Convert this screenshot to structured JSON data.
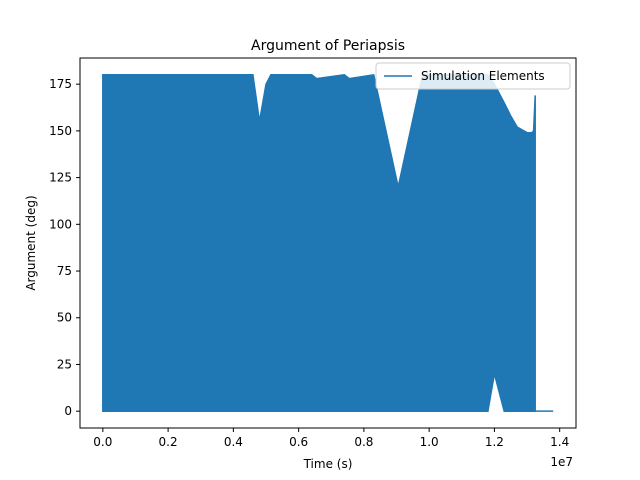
{
  "chart_data": {
    "type": "area",
    "title": "Argument of Periapsis",
    "xlabel": "Time (s)",
    "ylabel": "Argument (deg)",
    "x_offset_label": "1e7",
    "xlim": [
      -0.07,
      1.45
    ],
    "ylim": [
      -9,
      189
    ],
    "x_ticks": [
      0.0,
      0.2,
      0.4,
      0.6,
      0.8,
      1.0,
      1.2,
      1.4
    ],
    "x_tick_labels": [
      "0.0",
      "0.2",
      "0.4",
      "0.6",
      "0.8",
      "1.0",
      "1.2",
      "1.4"
    ],
    "y_ticks": [
      0,
      25,
      50,
      75,
      100,
      125,
      150,
      175
    ],
    "y_tick_labels": [
      "0",
      "25",
      "50",
      "75",
      "100",
      "125",
      "150",
      "175"
    ],
    "grid": false,
    "legend": {
      "position": "top-right",
      "entries": [
        "Simulation Elements"
      ]
    },
    "series": [
      {
        "name": "Simulation Elements",
        "color": "#1f77b4",
        "description": "Rapidly oscillating signal between the lower and upper envelopes",
        "x": [
          0.0,
          0.46,
          0.48,
          0.5,
          0.515,
          0.64,
          0.655,
          0.74,
          0.755,
          0.83,
          0.905,
          0.98,
          1.18,
          1.2,
          1.23,
          1.25,
          1.27,
          1.3,
          1.315,
          1.32,
          1.325
        ],
        "upper": [
          180,
          180,
          155,
          175,
          180,
          180,
          178,
          180,
          178,
          180,
          120,
          180,
          180,
          175,
          165,
          158,
          152,
          149,
          149,
          150,
          169
        ],
        "lower": [
          0,
          0,
          0,
          0,
          0,
          0,
          0,
          0,
          0,
          0,
          0,
          0,
          0,
          20,
          0,
          0,
          0,
          0,
          0,
          0,
          0
        ],
        "tail": {
          "x": [
            1.325,
            1.38
          ],
          "y": [
            0,
            0
          ]
        }
      }
    ]
  }
}
